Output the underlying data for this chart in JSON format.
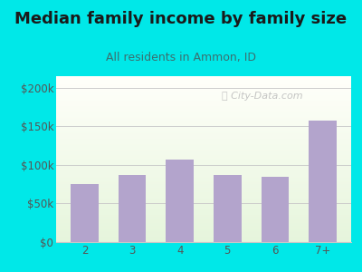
{
  "title": "Median family income by family size",
  "subtitle": "All residents in Ammon, ID",
  "categories": [
    "2",
    "3",
    "4",
    "5",
    "6",
    "7+"
  ],
  "values": [
    75000,
    87000,
    107000,
    87000,
    85000,
    158000
  ],
  "bar_color": "#b3a4cc",
  "yticks": [
    0,
    50000,
    100000,
    150000,
    200000
  ],
  "ytick_labels": [
    "$0",
    "$50k",
    "$100k",
    "$150k",
    "$200k"
  ],
  "ylim": [
    0,
    215000
  ],
  "figure_bg": "#00e8e8",
  "title_color": "#1a1a1a",
  "subtitle_color": "#3a7070",
  "tick_color": "#555555",
  "grid_color": "#c8c8c8",
  "watermark": "ⓘ City-Data.com",
  "watermark_color": "#bbbbbb",
  "title_fontsize": 13,
  "subtitle_fontsize": 9,
  "tick_fontsize": 8.5
}
